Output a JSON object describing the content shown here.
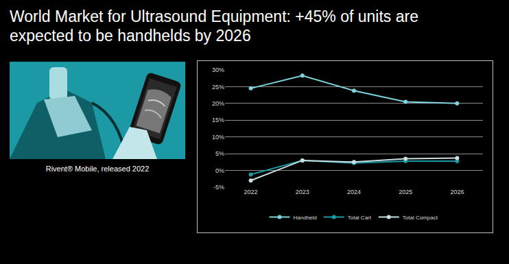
{
  "title": "World Market for Ultrasound Equipment: +45% of units are expected to be handhelds by 2026",
  "image_caption": "Rivent® Mobile, released 2022",
  "chart_data": {
    "type": "line",
    "categories": [
      "2022",
      "2023",
      "2024",
      "2025",
      "2026"
    ],
    "series": [
      {
        "name": "Handheld",
        "color": "#7fd3dc",
        "values": [
          24.5,
          28.3,
          23.8,
          20.5,
          20.0
        ],
        "marker": "circle",
        "line_style": "solid"
      },
      {
        "name": "Total Cart",
        "color": "#1a9aa5",
        "values": [
          -1.2,
          3.0,
          2.2,
          2.8,
          2.8
        ],
        "marker": "circle",
        "line_style": "solid"
      },
      {
        "name": "Total Compact",
        "color": "#c9dfe1",
        "values": [
          -3.0,
          3.0,
          2.5,
          3.5,
          3.7
        ],
        "marker": "circle",
        "line_style": "solid"
      }
    ],
    "ylim": [
      -5,
      30
    ],
    "yticks": [
      {
        "value": -5,
        "label": "-5%"
      },
      {
        "value": 0,
        "label": "0%"
      },
      {
        "value": 5,
        "label": "5%"
      },
      {
        "value": 10,
        "label": "10%"
      },
      {
        "value": 15,
        "label": "15%"
      },
      {
        "value": 20,
        "label": "20%"
      },
      {
        "value": 25,
        "label": "25%"
      },
      {
        "value": 30,
        "label": "30%"
      }
    ],
    "grid": true,
    "legend": "bottom"
  }
}
